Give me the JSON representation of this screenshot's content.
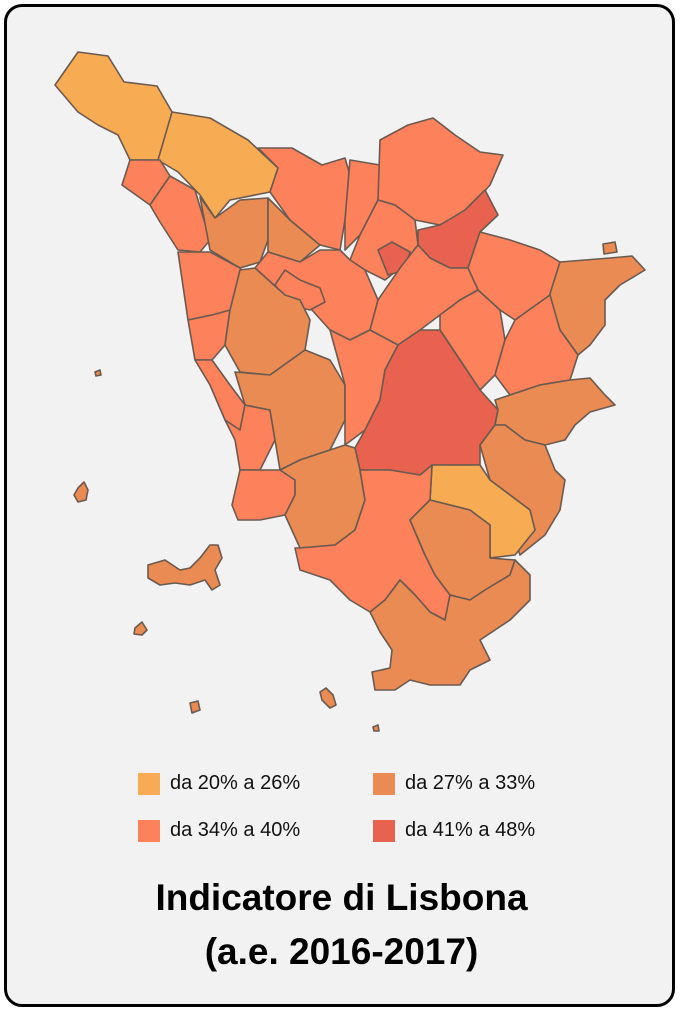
{
  "colors": {
    "class1": "#f7ab52",
    "class2": "#e98b52",
    "class3": "#fd815a",
    "class4": "#e8624f",
    "background": "#f2f2f2",
    "border": "#6b5a50"
  },
  "legend": [
    {
      "label": "da 20% a 26%",
      "color": "#f7ab52"
    },
    {
      "label": "da 27% a 33%",
      "color": "#e98b52"
    },
    {
      "label": "da 34% a 40%",
      "color": "#fd815a"
    },
    {
      "label": "da 41% a 48%",
      "color": "#e8624f"
    }
  ],
  "title": {
    "line1": "Indicatore di Lisbona",
    "line2": "(a.e. 2016-2017)"
  }
}
